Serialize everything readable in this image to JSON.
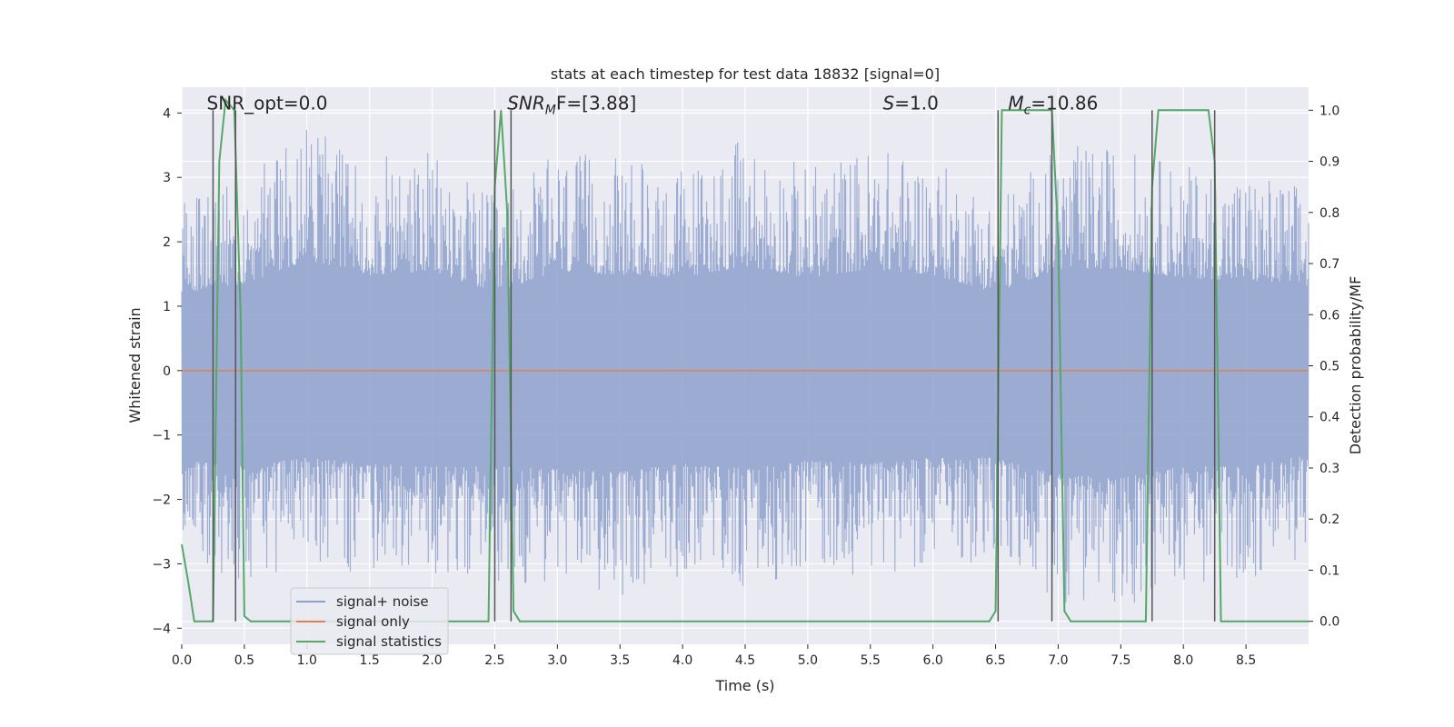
{
  "chart_data": {
    "type": "line",
    "title": "stats at each timestep for test data 18832 [signal=0]",
    "xlabel": "Time (s)",
    "ylabel": "Whitened strain",
    "y2label": "Detection probability/MF",
    "xlim": [
      0.0,
      9.0
    ],
    "ylim": [
      -4.25,
      4.4
    ],
    "y2lim": [
      -0.045,
      1.045
    ],
    "xticks": [
      0.0,
      0.5,
      1.0,
      1.5,
      2.0,
      2.5,
      3.0,
      3.5,
      4.0,
      4.5,
      5.0,
      5.5,
      6.0,
      6.5,
      7.0,
      7.5,
      8.0,
      8.5
    ],
    "xtick_labels": [
      "0.0",
      "0.5",
      "1.0",
      "1.5",
      "2.0",
      "2.5",
      "3.0",
      "3.5",
      "4.0",
      "4.5",
      "5.0",
      "5.5",
      "6.0",
      "6.5",
      "7.0",
      "7.5",
      "8.0",
      "8.5"
    ],
    "yticks": [
      -4,
      -3,
      -2,
      -1,
      0,
      1,
      2,
      3,
      4
    ],
    "ytick_labels": [
      "−4",
      "−3",
      "−2",
      "−1",
      "0",
      "1",
      "2",
      "3",
      "4"
    ],
    "y2ticks": [
      0.0,
      0.1,
      0.2,
      0.3,
      0.4,
      0.5,
      0.6,
      0.7,
      0.8,
      0.9,
      1.0
    ],
    "y2tick_labels": [
      "0.0",
      "0.1",
      "0.2",
      "0.3",
      "0.4",
      "0.5",
      "0.6",
      "0.7",
      "0.8",
      "0.9",
      "1.0"
    ],
    "grid": true,
    "legend_position": "lower-left",
    "colors": {
      "background": "#eaeaf2",
      "grid": "#ffffff",
      "noise": "#8da0cb",
      "signal_only": "#dd8452",
      "statistics": "#55a868",
      "markers": "#555555"
    },
    "noise_envelope": {
      "x": [
        0.0,
        0.5,
        1.0,
        1.5,
        2.0,
        2.5,
        3.0,
        3.5,
        4.0,
        4.5,
        5.0,
        5.5,
        6.0,
        6.5,
        7.0,
        7.5,
        8.0,
        8.5,
        9.0
      ],
      "upper": [
        2.7,
        3.0,
        3.8,
        3.3,
        3.4,
        2.7,
        3.4,
        3.3,
        3.2,
        3.6,
        3.2,
        3.5,
        3.3,
        2.7,
        3.5,
        3.5,
        3.2,
        3.1,
        2.9
      ],
      "lower": [
        -3.1,
        -3.3,
        -3.0,
        -3.2,
        -3.3,
        -3.3,
        -3.4,
        -3.5,
        -3.2,
        -3.4,
        -3.1,
        -3.2,
        -3.0,
        -3.0,
        -3.6,
        -3.7,
        -3.3,
        -3.3,
        -2.9
      ]
    },
    "series": [
      {
        "name": "signal+ noise",
        "type": "noise",
        "axis": "left"
      },
      {
        "name": "signal only",
        "axis": "left",
        "x": [
          0.0,
          9.0
        ],
        "y": [
          0.0,
          0.0
        ]
      },
      {
        "name": "signal statistics",
        "axis": "right",
        "x": [
          0.0,
          0.05,
          0.1,
          0.25,
          0.3,
          0.35,
          0.42,
          0.47,
          0.5,
          0.55,
          2.45,
          2.5,
          2.55,
          2.6,
          2.65,
          2.7,
          6.45,
          6.5,
          6.55,
          6.95,
          7.0,
          7.05,
          7.1,
          7.4,
          7.7,
          7.75,
          7.8,
          8.2,
          8.25,
          8.3,
          8.35,
          9.0
        ],
        "y": [
          0.15,
          0.08,
          0.0,
          0.0,
          0.9,
          1.02,
          1.0,
          0.6,
          0.01,
          0.0,
          0.0,
          0.85,
          1.0,
          0.8,
          0.02,
          0.0,
          0.0,
          0.02,
          1.0,
          1.0,
          0.75,
          0.02,
          0.0,
          0.0,
          0.0,
          0.85,
          1.0,
          1.0,
          0.9,
          0.0,
          0.0,
          0.0
        ]
      }
    ],
    "markers_x": [
      0.25,
      0.43,
      2.5,
      2.63,
      6.52,
      6.95,
      7.75,
      8.25
    ],
    "annotations": [
      {
        "text": "SNR_opt=0.0",
        "x": 0.2,
        "y": 4.15
      },
      {
        "text": "SNR",
        "sub": "M",
        "tail": "F=[3.88]",
        "italic": true,
        "x": 2.6,
        "y": 4.15
      },
      {
        "text": "S",
        "tail": "=1.0",
        "italic": true,
        "x": 5.6,
        "y": 4.15
      },
      {
        "text": "M",
        "sub": "c",
        "tail": "=10.86",
        "italic": true,
        "x": 6.6,
        "y": 4.15
      }
    ]
  }
}
